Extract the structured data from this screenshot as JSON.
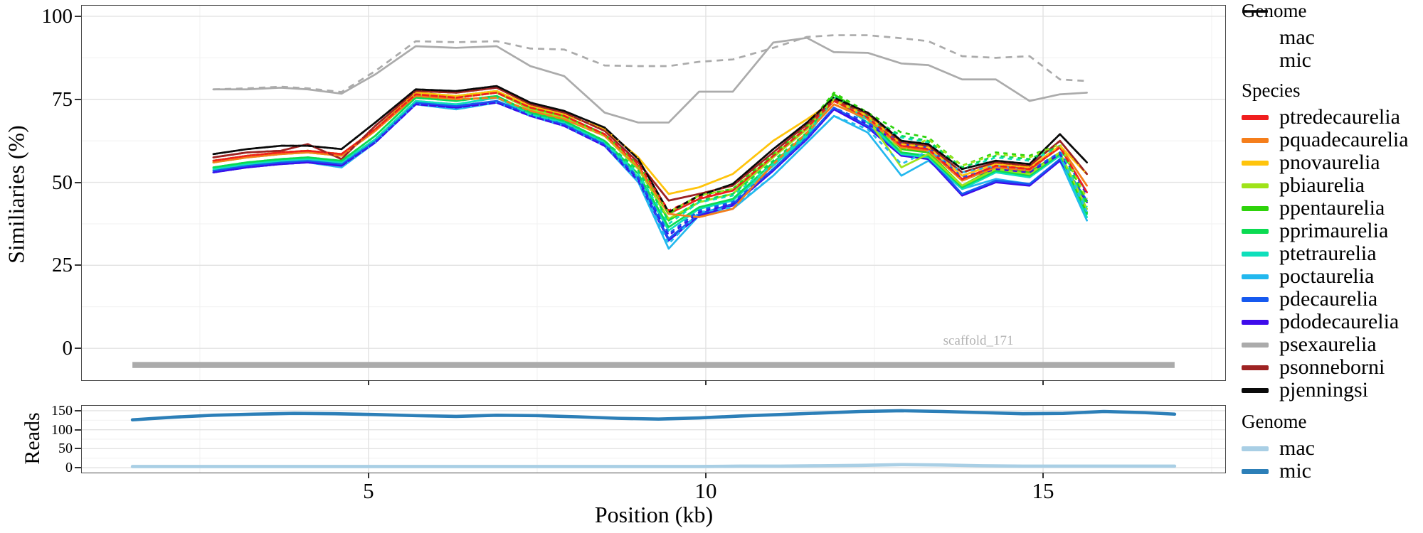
{
  "axes": {
    "y_title": "Similiaries (%)",
    "x_title": "Position (kb)",
    "reads_title": "Reads",
    "sim_yticks": [
      100,
      75,
      50,
      25,
      0
    ],
    "xticks": [
      5,
      10,
      15
    ],
    "reads_yticks": [
      150,
      100,
      50,
      0
    ]
  },
  "annotation": {
    "scaffold_label": "scaffold_171"
  },
  "legend_genome_top": {
    "title": "Genome",
    "items": [
      {
        "label": "mac",
        "style": "solid",
        "color": "#0a0a0a"
      },
      {
        "label": "mic",
        "style": "dashed",
        "color": "#0a0a0a"
      }
    ]
  },
  "legend_species": {
    "title": "Species",
    "items": [
      {
        "label": "ptredecaurelia",
        "color": "#f01e1e"
      },
      {
        "label": "pquadecaurelia",
        "color": "#f57e1b"
      },
      {
        "label": "pnovaurelia",
        "color": "#ffc40c"
      },
      {
        "label": "pbiaurelia",
        "color": "#9fe31a"
      },
      {
        "label": "ppentaurelia",
        "color": "#2ed30b"
      },
      {
        "label": "pprimaurelia",
        "color": "#0bdb52"
      },
      {
        "label": "ptetraurelia",
        "color": "#0fdfbb"
      },
      {
        "label": "poctaurelia",
        "color": "#23b8ee"
      },
      {
        "label": "pdecaurelia",
        "color": "#1659ef"
      },
      {
        "label": "pdodecaurelia",
        "color": "#3e0beb"
      },
      {
        "label": "psexaurelia",
        "color": "#ababab"
      },
      {
        "label": "psonneborni",
        "color": "#9e2323"
      },
      {
        "label": "pjenningsi",
        "color": "#0a0a0a"
      }
    ]
  },
  "legend_genome_reads": {
    "title": "Genome",
    "items": [
      {
        "label": "mac",
        "color": "#a9cfe5"
      },
      {
        "label": "mic",
        "color": "#2c7fb8"
      }
    ]
  },
  "chart_data": [
    {
      "type": "line",
      "panel": "similarity",
      "ylabel": "Similiaries (%)",
      "xlabel": "Position (kb)",
      "xlim": [
        0.75,
        17.7
      ],
      "ylim": [
        -9.6,
        103.2
      ],
      "x_major": [
        5,
        10,
        15
      ],
      "x_minor": [
        2.5,
        7.5,
        12.5,
        17.5
      ],
      "y_major": [
        0,
        25,
        50,
        75,
        100
      ],
      "y_minor": [
        12.5,
        37.5,
        62.5,
        87.5
      ],
      "grid": true,
      "legend_position": "right",
      "scaffold": {
        "label": "scaffold_171",
        "start": 1.5,
        "end": 16.95,
        "y": -5,
        "color": "#ababab"
      },
      "x": [
        2.7,
        3.2,
        3.7,
        4.1,
        4.6,
        5.1,
        5.7,
        6.3,
        6.9,
        7.4,
        7.9,
        8.5,
        9.0,
        9.45,
        9.9,
        10.4,
        11.0,
        11.5,
        11.9,
        12.4,
        12.9,
        13.3,
        13.8,
        14.3,
        14.8,
        15.25,
        15.65
      ],
      "series": [
        {
          "name": "ptredecaurelia",
          "color": "#f01e1e",
          "mac": [
            56.5,
            58,
            59,
            59.5,
            58.5,
            66,
            76.5,
            75.5,
            77,
            72.5,
            70,
            64.5,
            55,
            40.5,
            45,
            47.5,
            58,
            66.5,
            74.5,
            69.5,
            61,
            60,
            51,
            55,
            54,
            60.5,
            47
          ],
          "mic_delta": [
            0,
            0,
            0,
            0,
            0,
            0,
            0,
            0,
            0,
            0,
            0,
            0,
            0.5,
            1,
            0.5,
            0,
            0,
            0,
            0,
            0,
            0,
            0,
            0,
            0,
            0,
            0,
            0
          ]
        },
        {
          "name": "pquadecaurelia",
          "color": "#f57e1b",
          "mac": [
            56,
            57.5,
            58.5,
            59,
            58,
            65.5,
            76,
            75,
            75.5,
            71.5,
            69,
            64,
            54.5,
            40.5,
            39.5,
            42,
            55.5,
            65,
            73.5,
            69,
            60.5,
            59.5,
            50.5,
            54.5,
            53.5,
            61,
            49
          ],
          "mic_delta": [
            0,
            0,
            0,
            0,
            0,
            0,
            0,
            0,
            0,
            0,
            0,
            0,
            0,
            0,
            0,
            0,
            0,
            0,
            0,
            0,
            0,
            0,
            0,
            0,
            0,
            0,
            0
          ]
        },
        {
          "name": "pnovaurelia",
          "color": "#ffc40c",
          "mac": [
            56.5,
            58,
            59,
            59.5,
            58.5,
            66,
            77,
            76,
            77.5,
            73,
            70.5,
            66,
            57.5,
            46.5,
            48.5,
            52.5,
            62.5,
            69,
            74.5,
            70,
            61.5,
            60.5,
            52,
            55.5,
            54.5,
            61,
            52.5
          ],
          "mic_delta": [
            0,
            0,
            0,
            0,
            0,
            0,
            0,
            0,
            0,
            0,
            0,
            0,
            0,
            0,
            0,
            0,
            0,
            0,
            0,
            0,
            0,
            0,
            0,
            0,
            0,
            0,
            0
          ]
        },
        {
          "name": "pbiaurelia",
          "color": "#9fe31a",
          "mac": [
            56,
            57.5,
            58.5,
            59,
            58,
            65.5,
            76.5,
            75.5,
            77,
            72,
            69.5,
            64,
            54,
            39,
            44,
            46.5,
            57.5,
            66,
            74.5,
            69,
            54.5,
            58.5,
            49,
            54,
            52.5,
            59,
            42
          ],
          "mic_delta": [
            0,
            0,
            0,
            0,
            0,
            0,
            0,
            0,
            0,
            0,
            0,
            0,
            1,
            2,
            2,
            1.5,
            0.5,
            0.5,
            0.5,
            1,
            5,
            4.5,
            6,
            4.5,
            5,
            2.5,
            3
          ]
        },
        {
          "name": "ppentaurelia",
          "color": "#2ed30b",
          "mac": [
            56.5,
            58,
            59,
            59.5,
            58.5,
            66,
            77,
            76,
            77.5,
            72.5,
            70,
            64.5,
            54.5,
            38.5,
            44,
            46.5,
            58,
            66.5,
            76.5,
            70,
            60,
            59,
            49,
            54.5,
            53,
            59,
            41
          ],
          "mic_delta": [
            0,
            0,
            0,
            0,
            0,
            0,
            0,
            0,
            0,
            0,
            0,
            0,
            1,
            2,
            2,
            1.5,
            0.5,
            0.5,
            0.5,
            1,
            5,
            4.5,
            6,
            4.5,
            5,
            2.5,
            3
          ]
        },
        {
          "name": "pprimaurelia",
          "color": "#0bdb52",
          "mac": [
            54.5,
            56,
            57,
            57.5,
            56.5,
            64,
            75.5,
            74.5,
            76,
            71,
            68.5,
            62.5,
            52.5,
            36.5,
            42.5,
            45,
            56,
            64.5,
            75.5,
            69,
            59,
            58,
            48.5,
            53.5,
            52,
            58.5,
            40.5
          ],
          "mic_delta": [
            0,
            0,
            0,
            0,
            0,
            0,
            0,
            0,
            0,
            0,
            0,
            0,
            1,
            2,
            2,
            1.5,
            0.5,
            0.5,
            0.5,
            1,
            5,
            4.5,
            6,
            4.5,
            5,
            2.5,
            3
          ]
        },
        {
          "name": "ptetraurelia",
          "color": "#0fdfbb",
          "mac": [
            54,
            55.5,
            56.5,
            57,
            56,
            63,
            74.5,
            73.5,
            75.5,
            70.5,
            68,
            62,
            51.5,
            35.5,
            42,
            44.5,
            55,
            64,
            75,
            68,
            58.5,
            57.5,
            48,
            53,
            51.5,
            58,
            39.5
          ],
          "mic_delta": [
            0,
            0,
            0,
            0,
            0,
            0,
            0,
            0,
            0,
            0,
            0,
            0,
            1,
            2,
            2,
            1.5,
            0.5,
            0.5,
            0.5,
            1,
            5,
            4.5,
            6,
            4.5,
            5,
            2.5,
            3
          ]
        },
        {
          "name": "poctaurelia",
          "color": "#23b8ee",
          "mac": [
            53,
            54.5,
            55.5,
            56,
            54.5,
            62,
            73.5,
            72,
            74,
            70,
            67,
            61,
            50,
            30,
            40,
            42,
            52,
            62,
            70,
            65,
            52,
            56.5,
            48,
            51,
            49.5,
            56.5,
            38.5
          ],
          "mic_delta": [
            0,
            0,
            0,
            0,
            0,
            0,
            0,
            0,
            0,
            0,
            0,
            0,
            0.5,
            1.5,
            1,
            0.5,
            0,
            0,
            0,
            1,
            3.5,
            3,
            5,
            4,
            4,
            2,
            2.5
          ]
        },
        {
          "name": "pdecaurelia",
          "color": "#1659ef",
          "mac": [
            53.5,
            55,
            56,
            56.5,
            55.5,
            62.5,
            74,
            73,
            74.5,
            70.5,
            67.5,
            61.5,
            51,
            33,
            40.5,
            43.5,
            54,
            63.5,
            72.5,
            67,
            58.5,
            57.5,
            46.5,
            50.5,
            49.5,
            57,
            44.5
          ],
          "mic_delta": [
            0,
            0,
            0,
            0,
            0,
            0,
            0,
            0,
            0,
            0,
            0,
            0,
            0.5,
            1.5,
            1,
            0.5,
            0,
            0,
            0,
            1,
            3.5,
            3,
            5,
            4,
            4,
            2,
            2.5
          ]
        },
        {
          "name": "pdodecaurelia",
          "color": "#3e0beb",
          "mac": [
            53,
            54.5,
            55.5,
            56,
            55,
            62,
            73.5,
            72.5,
            74,
            70,
            67,
            61,
            50.5,
            32.5,
            40,
            43,
            53.5,
            63,
            72,
            66.5,
            58,
            57,
            46,
            50,
            49,
            56.5,
            44
          ],
          "mic_delta": [
            0,
            0,
            0,
            0,
            0,
            0,
            0,
            0,
            0,
            0,
            0,
            0,
            0.5,
            1.5,
            1,
            0.5,
            0,
            0,
            0,
            1,
            3.5,
            3,
            5,
            4,
            4,
            2,
            2.5
          ]
        },
        {
          "name": "psexaurelia",
          "color": "#ababab",
          "mac": [
            78,
            78,
            78.5,
            78,
            76.7,
            82.5,
            91,
            90.5,
            91,
            85,
            82,
            71,
            68,
            68,
            77.3,
            77.3,
            92.1,
            93.5,
            89.2,
            89,
            85.8,
            85.3,
            81,
            81,
            74.5,
            76.5,
            77
          ],
          "mic": [
            78,
            78.3,
            78.8,
            78.3,
            77.2,
            83.5,
            92.5,
            92.2,
            92.5,
            90.3,
            90,
            85.2,
            85,
            85,
            86.3,
            87,
            90.5,
            93.8,
            94.3,
            94.3,
            93.4,
            92.5,
            88,
            87.5,
            88,
            81,
            80.5
          ]
        },
        {
          "name": "psonneborni",
          "color": "#9e2323",
          "mac": [
            57.5,
            59,
            59.5,
            61.5,
            57,
            67,
            77.5,
            77,
            78.5,
            73.5,
            71,
            65.5,
            56,
            44.5,
            46.5,
            49,
            59,
            67.5,
            75,
            70.5,
            62,
            61,
            53,
            56,
            55,
            62.5,
            52.5
          ],
          "mic_delta": [
            0,
            0,
            0,
            0,
            0,
            0,
            0,
            0,
            0,
            0,
            0,
            0,
            0,
            0,
            0,
            0,
            0,
            0,
            0,
            0,
            0,
            0,
            0,
            0,
            0,
            0,
            0
          ]
        },
        {
          "name": "pjenningsi",
          "color": "#0a0a0a",
          "mac": [
            58.5,
            60,
            61,
            61,
            60,
            68,
            78,
            77.5,
            79,
            74,
            71.5,
            66.5,
            57,
            41,
            46,
            49.5,
            60,
            68,
            75.5,
            71,
            62.5,
            61.5,
            54,
            56.5,
            55.5,
            64.5,
            56
          ],
          "mic_delta": [
            0,
            0,
            0,
            0,
            0,
            0,
            0,
            0,
            0,
            0,
            0,
            0,
            0,
            0,
            0,
            0,
            0,
            0,
            0,
            0,
            0,
            0,
            0,
            0,
            0,
            0,
            0
          ]
        }
      ]
    },
    {
      "type": "line",
      "panel": "reads",
      "ylabel": "Reads",
      "xlim": [
        0.75,
        17.7
      ],
      "ylim": [
        -13,
        163
      ],
      "x_major": [
        5,
        10,
        15
      ],
      "x_minor": [
        2.5,
        7.5,
        12.5,
        17.5
      ],
      "y_major": [
        0,
        50,
        100,
        150
      ],
      "y_minor": [
        25,
        75,
        125
      ],
      "grid": true,
      "legend_position": "right",
      "x": [
        1.5,
        2.1,
        2.7,
        3.3,
        3.9,
        4.5,
        5.1,
        5.7,
        6.3,
        6.9,
        7.5,
        8.1,
        8.7,
        9.3,
        9.9,
        10.5,
        11.1,
        11.7,
        12.3,
        12.9,
        13.5,
        14.1,
        14.7,
        15.3,
        15.9,
        16.5,
        16.95
      ],
      "series": [
        {
          "name": "mic",
          "color": "#2c7fb8",
          "values": [
            126,
            133,
            138,
            141,
            143,
            142,
            140,
            137,
            135,
            138,
            137,
            134,
            130,
            128,
            131,
            136,
            140,
            144,
            148,
            150,
            148,
            145,
            142,
            143,
            148,
            145,
            141
          ]
        },
        {
          "name": "mac",
          "color": "#a9cfe5",
          "values": [
            3,
            3,
            3,
            3,
            3,
            3,
            3,
            3,
            3,
            3,
            3,
            3,
            3,
            3,
            3,
            4,
            4,
            5,
            6,
            8,
            7,
            5,
            4,
            4,
            4,
            4,
            4
          ]
        }
      ]
    }
  ]
}
